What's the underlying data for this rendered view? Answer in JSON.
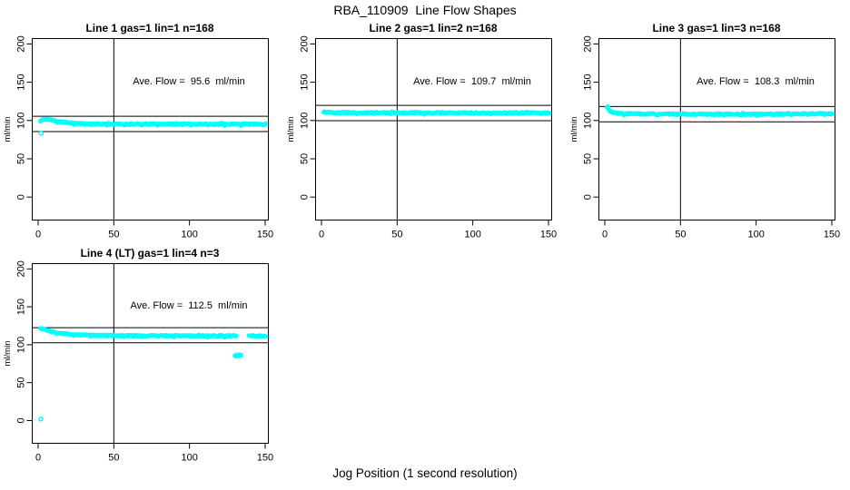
{
  "title": "RBA_110909  Line Flow Shapes",
  "x_axis_label": "Jog Position (1 second resolution)",
  "colors": {
    "points": "#00ffff",
    "axis": "#000000",
    "background": "#ffffff",
    "text": "#000000"
  },
  "chart_data": [
    {
      "type": "scatter",
      "title": "Line 1 gas=1 lin=1 n=168",
      "annotation": "Ave. Flow =  95.6  ml/min",
      "ave_flow_ml_min": 95.6,
      "gas": 1,
      "lin": 1,
      "n": 168,
      "ylabel": "ml/min",
      "xlim": [
        -3.9,
        152.1
      ],
      "ylim": [
        -30,
        207
      ],
      "x_ticks": [
        0,
        50,
        100,
        150
      ],
      "y_ticks": [
        0,
        50,
        100,
        150,
        200
      ],
      "vline_x": 50,
      "hlines": [
        105.6,
        85.6
      ],
      "grid": false,
      "band_keypoints": [
        [
          1.5,
          99.5
        ],
        [
          3,
          101.0
        ],
        [
          5,
          101.8
        ],
        [
          7,
          101.5
        ],
        [
          10,
          100.0
        ],
        [
          14,
          98.5
        ],
        [
          18,
          97.3
        ],
        [
          24,
          96.3
        ],
        [
          30,
          95.7
        ],
        [
          40,
          95.3
        ],
        [
          60,
          95.1
        ],
        [
          90,
          95.3
        ],
        [
          120,
          95.2
        ],
        [
          151,
          95.1
        ]
      ],
      "band_gaps": [],
      "outliers": [
        [
          2,
          83.5
        ]
      ]
    },
    {
      "type": "scatter",
      "title": "Line 2 gas=1 lin=2 n=168",
      "annotation": "Ave. Flow =  109.7  ml/min",
      "ave_flow_ml_min": 109.7,
      "gas": 1,
      "lin": 2,
      "n": 168,
      "ylabel": "ml/min",
      "xlim": [
        -3.9,
        152.1
      ],
      "ylim": [
        -30,
        207
      ],
      "x_ticks": [
        0,
        50,
        100,
        150
      ],
      "y_ticks": [
        0,
        50,
        100,
        150,
        200
      ],
      "vline_x": 50,
      "hlines": [
        119.7,
        99.7
      ],
      "grid": false,
      "band_keypoints": [
        [
          1.5,
          111.0
        ],
        [
          4,
          110.6
        ],
        [
          10,
          110.4
        ],
        [
          30,
          110.2
        ],
        [
          60,
          110.0
        ],
        [
          100,
          109.8
        ],
        [
          130,
          109.9
        ],
        [
          151,
          109.6
        ]
      ],
      "band_gaps": [],
      "outliers": [
        [
          2,
          111.3
        ]
      ]
    },
    {
      "type": "scatter",
      "title": "Line 3 gas=1 lin=3 n=168",
      "annotation": "Ave. Flow =  108.3  ml/min",
      "ave_flow_ml_min": 108.3,
      "gas": 1,
      "lin": 3,
      "n": 168,
      "ylabel": "ml/min",
      "xlim": [
        -3.9,
        152.1
      ],
      "ylim": [
        -30,
        207
      ],
      "x_ticks": [
        0,
        50,
        100,
        150
      ],
      "y_ticks": [
        0,
        50,
        100,
        150,
        200
      ],
      "vline_x": 50,
      "hlines": [
        118.3,
        98.3
      ],
      "grid": false,
      "band_keypoints": [
        [
          1.5,
          117.5
        ],
        [
          2.5,
          114.5
        ],
        [
          4,
          111.5
        ],
        [
          6,
          110.0
        ],
        [
          9,
          109.2
        ],
        [
          15,
          108.7
        ],
        [
          30,
          108.4
        ],
        [
          60,
          108.2
        ],
        [
          100,
          108.1
        ],
        [
          135,
          108.6
        ],
        [
          145,
          109.0
        ],
        [
          151,
          108.6
        ]
      ],
      "band_gaps": [],
      "outliers": [
        [
          2,
          117.8
        ]
      ]
    },
    {
      "type": "scatter",
      "title": "Line 4 (LT) gas=1 lin=4 n=3",
      "annotation": "Ave. Flow =  112.5  ml/min",
      "ave_flow_ml_min": 112.5,
      "gas": 1,
      "lin": 4,
      "n": 3,
      "ylabel": "ml/min",
      "xlim": [
        -3.9,
        152.1
      ],
      "ylim": [
        -30,
        207
      ],
      "x_ticks": [
        0,
        50,
        100,
        150
      ],
      "y_ticks": [
        0,
        50,
        100,
        150,
        200
      ],
      "vline_x": 50,
      "hlines": [
        122.5,
        102.5
      ],
      "grid": false,
      "band_keypoints": [
        [
          1.5,
          121.5
        ],
        [
          3,
          120.8
        ],
        [
          5,
          119.5
        ],
        [
          8,
          117.5
        ],
        [
          12,
          115.7
        ],
        [
          16,
          114.5
        ],
        [
          22,
          113.5
        ],
        [
          30,
          112.7
        ],
        [
          40,
          112.2
        ],
        [
          55,
          111.9
        ],
        [
          80,
          111.7
        ],
        [
          110,
          111.6
        ],
        [
          127,
          111.5
        ],
        [
          140,
          111.6
        ],
        [
          151,
          111.3
        ]
      ],
      "band_gaps": [
        [
          131.5,
          139.0
        ]
      ],
      "outliers": [
        [
          1.8,
          2
        ],
        [
          130.2,
          85.5
        ],
        [
          131.0,
          86.0
        ],
        [
          131.8,
          85.3
        ],
        [
          132.5,
          86.3
        ],
        [
          133.2,
          85.7
        ],
        [
          133.9,
          86.1
        ],
        [
          131.3,
          85.1
        ],
        [
          132.8,
          86.5
        ]
      ]
    }
  ]
}
